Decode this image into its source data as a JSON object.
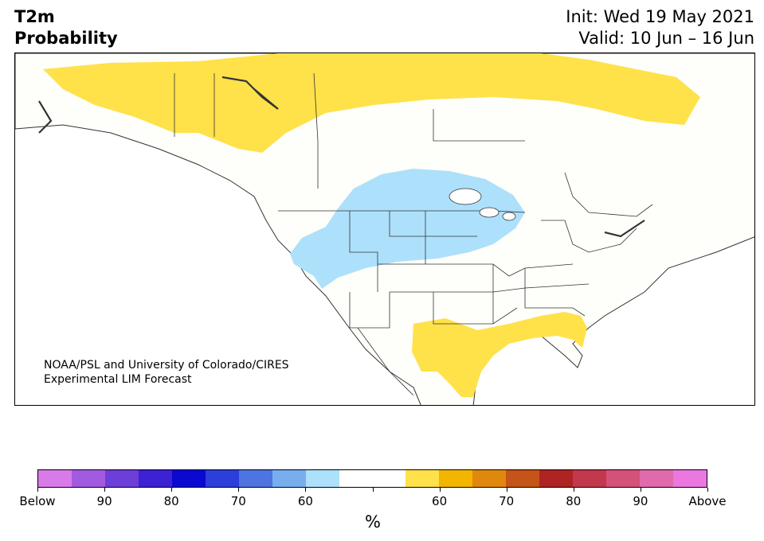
{
  "title": {
    "left_line1": "T2m",
    "left_line2": "Probability",
    "init": "Init: Wed 19 May 2021",
    "valid": "Valid: 10 Jun – 16 Jun"
  },
  "credit": {
    "line1": "NOAA/PSL and University of Colorado/CIRES",
    "line2": "Experimental LIM Forecast"
  },
  "colorbar": {
    "unit": "%",
    "colors": [
      "#d87be8",
      "#a25ae0",
      "#6d3ed8",
      "#3d22d4",
      "#0b08cf",
      "#2c3fda",
      "#4d74e0",
      "#79aeee",
      "#ade0fb",
      "#ffffff",
      "#ffffff",
      "#ffe14a",
      "#f2b600",
      "#e0880e",
      "#c45417",
      "#ad2423",
      "#c2384d",
      "#d4517a",
      "#e06aab",
      "#eb78e0"
    ],
    "tick_labels": [
      "Below",
      "90",
      "80",
      "70",
      "60",
      "",
      "60",
      "70",
      "80",
      "90",
      "Above"
    ]
  },
  "map": {
    "colors": {
      "above_60": "#ffe14a",
      "below_60": "#ade0fb",
      "land": "#fefefa",
      "border": "#333333"
    }
  }
}
